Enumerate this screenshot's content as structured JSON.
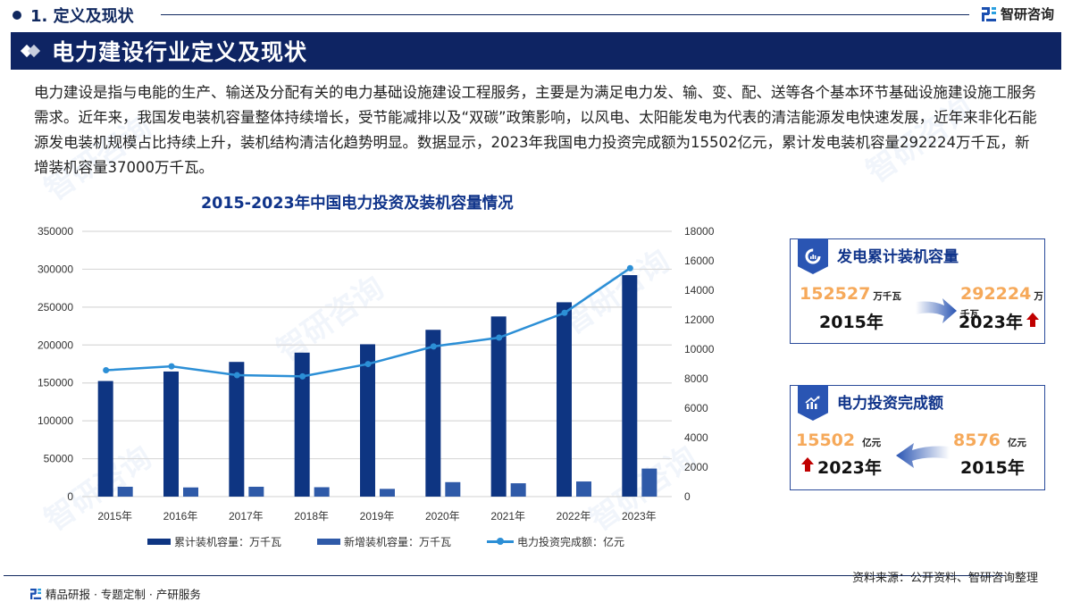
{
  "header": {
    "section_title": "1. 定义及现状",
    "brand_name": "智研咨询",
    "banner_title": "电力建设行业定义及现状"
  },
  "body_text": "电力建设是指与电能的生产、输送及分配有关的电力基础设施建设工程服务，主要是为满足电力发、输、变、配、送等各个基本环节基础设施建设施工服务需求。近年来，我国发电装机容量整体持续增长，受节能减排以及“双碳”政策影响，以风电、太阳能发电为代表的清洁能源发电快速发展，近年来非化石能源发电装机规模占比持续上升，装机结构清洁化趋势明显。数据显示，2023年我国电力投资完成额为15502亿元，累计发电装机容量292224万千瓦，新增装机容量37000万千瓦。",
  "chart_data": {
    "type": "bar+line",
    "title": "2015-2023年中国电力投资及装机容量情况",
    "categories": [
      "2015年",
      "2016年",
      "2017年",
      "2018年",
      "2019年",
      "2020年",
      "2021年",
      "2022年",
      "2023年"
    ],
    "series": [
      {
        "name": "累计装机容量：万千瓦",
        "type": "bar",
        "axis": "left",
        "color": "#0e3582",
        "values": [
          152527,
          165051,
          177703,
          189967,
          201006,
          220058,
          237692,
          256405,
          292224
        ]
      },
      {
        "name": "新增装机容量：万千瓦",
        "type": "bar",
        "axis": "left",
        "color": "#2f5aa8",
        "values": [
          13000,
          12100,
          13000,
          12400,
          10200,
          19100,
          17600,
          19970,
          37000
        ]
      },
      {
        "name": "电力投资完成额：亿元",
        "type": "line",
        "axis": "right",
        "color": "#2c8fd6",
        "values": [
          8576,
          8840,
          8240,
          8160,
          8995,
          10190,
          10786,
          12470,
          15502
        ]
      }
    ],
    "left_axis": {
      "min": 0,
      "max": 350000,
      "ticks": [
        "0",
        "50000",
        "100000",
        "150000",
        "200000",
        "250000",
        "300000",
        "350000"
      ]
    },
    "right_axis": {
      "min": 0,
      "max": 18000,
      "ticks": [
        "0",
        "2000",
        "4000",
        "6000",
        "8000",
        "10000",
        "12000",
        "14000",
        "16000",
        "18000"
      ]
    },
    "grid": true,
    "legend_position": "bottom"
  },
  "cards": {
    "capacity": {
      "title": "发电累计装机容量",
      "start_value": "152527",
      "start_unit": "万千瓦",
      "start_year": "2015年",
      "end_value": "292224",
      "end_unit": "万千瓦",
      "end_year": "2023年"
    },
    "investment": {
      "title": "电力投资完成额",
      "end_value": "15502",
      "end_unit": "亿元",
      "end_year": "2023年",
      "start_value": "8576",
      "start_unit": "亿元",
      "start_year": "2015年"
    }
  },
  "footer": {
    "source": "资料来源：公开资料、智研咨询整理",
    "tagline": "精品研报 · 专题定制 · 产研服务"
  },
  "colors": {
    "navy": "#0e2463",
    "accent_blue": "#10348a",
    "orange": "#f6a95a",
    "up_red": "#c00000"
  }
}
